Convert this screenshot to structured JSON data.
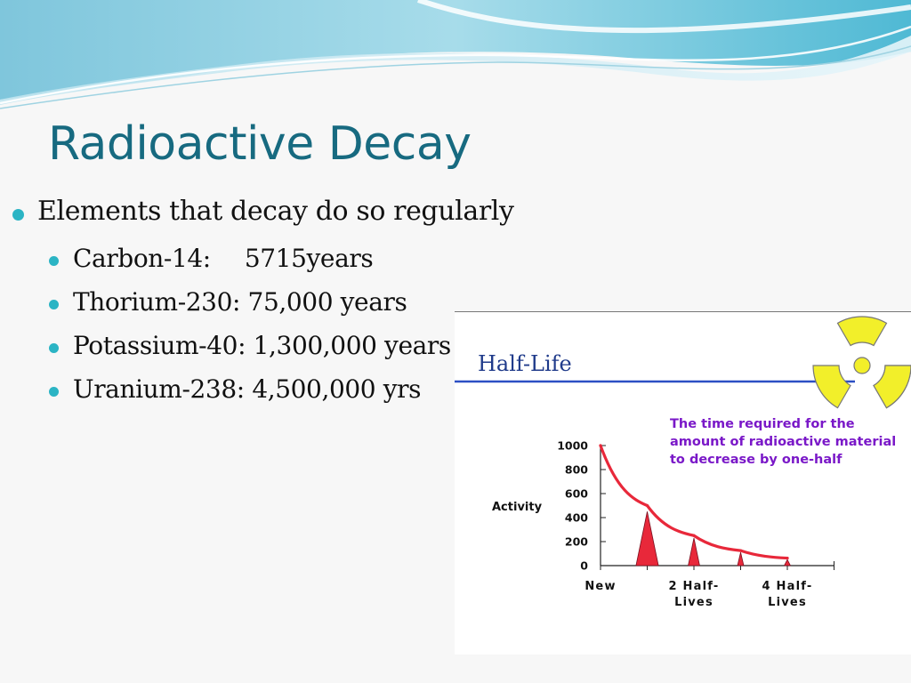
{
  "slide": {
    "title": "Radioactive Decay",
    "bullet": "Elements that decay do so regularly",
    "items": [
      {
        "isotope": "Carbon-14:",
        "value": "5715years"
      },
      {
        "isotope": "Thorium-230:",
        "value": "75,000 years"
      },
      {
        "isotope": "Potassium-40:",
        "value": "1,300,000 years"
      },
      {
        "isotope": "Uranium-238:",
        "value": "4,500,000 yrs"
      }
    ]
  },
  "figure": {
    "heading": "Half-Life",
    "definition": [
      "The time required for the",
      "amount of radioactive material",
      "to decrease by one-half"
    ],
    "symbol_icon": "radiation-trefoil-icon",
    "colors": {
      "curve": "#e8283a",
      "definition": "#7a18c8",
      "rule": "#2c4fc4",
      "trefoil": "#f2ef2a",
      "title": "#176a80",
      "bullet": "#2bb4c4"
    }
  },
  "chart_data": {
    "type": "line",
    "ylabel": "Activity",
    "yticks": [
      "1000",
      "800",
      "600",
      "400",
      "200",
      "0"
    ],
    "ylim": [
      0,
      1000
    ],
    "xlim": [
      0,
      5
    ],
    "xtick_labels": [
      {
        "x": 0,
        "lines": [
          "New"
        ]
      },
      {
        "x": 2,
        "lines": [
          "2 Half-",
          "Lives"
        ]
      },
      {
        "x": 4,
        "lines": [
          "4 Half-",
          "Lives"
        ]
      }
    ],
    "series": [
      {
        "x": [
          0,
          1,
          2,
          3,
          4
        ],
        "values": [
          1000,
          500,
          250,
          125,
          62.5
        ]
      }
    ],
    "peaks": [
      {
        "x": 1,
        "value": 450
      },
      {
        "x": 2,
        "value": 230
      },
      {
        "x": 3,
        "value": 110
      },
      {
        "x": 4,
        "value": 50
      }
    ],
    "grid": false
  }
}
